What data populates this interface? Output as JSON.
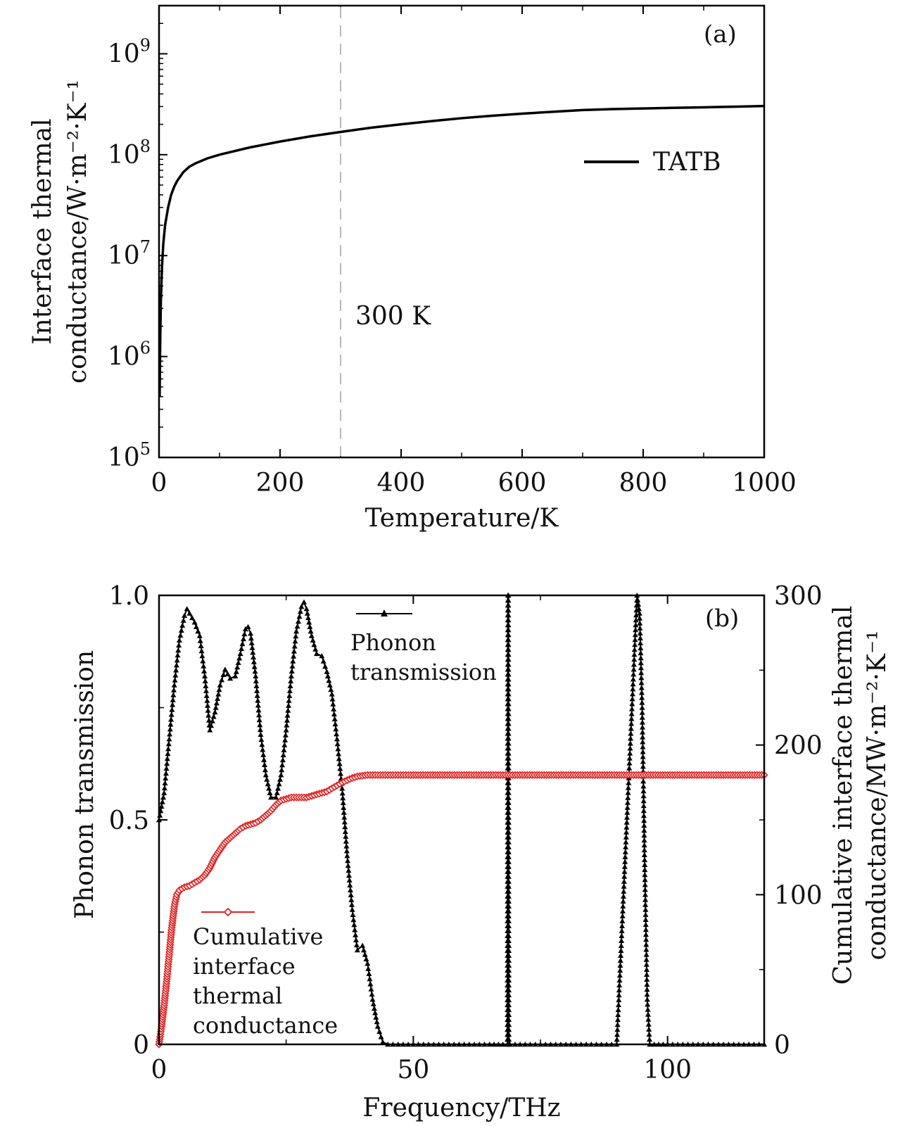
{
  "chart_data": [
    {
      "panel_label": "(a)",
      "type": "line",
      "title": "",
      "xlabel": "Temperature/K",
      "ylabel_line1": "Interface thermal",
      "ylabel_line2": "conductance/W·m⁻²·K⁻¹",
      "yscale": "log",
      "xlim": [
        0,
        1000
      ],
      "ylim": [
        100000,
        3000000000
      ],
      "x_ticks": [
        0,
        200,
        400,
        600,
        800,
        1000
      ],
      "x_tick_labels": [
        "0",
        "200",
        "400",
        "600",
        "800",
        "1000"
      ],
      "y_ticks": [
        100000,
        1000000,
        10000000,
        100000000,
        1000000000
      ],
      "y_tick_labels": [
        {
          "base": "10",
          "exp": "5"
        },
        {
          "base": "10",
          "exp": "6"
        },
        {
          "base": "10",
          "exp": "7"
        },
        {
          "base": "10",
          "exp": "8"
        },
        {
          "base": "10",
          "exp": "9"
        }
      ],
      "reference_line": {
        "x": 300,
        "label": "300 K",
        "color": "#b8b8b8"
      },
      "legend": [
        {
          "name": "TATB",
          "color": "#000000"
        }
      ],
      "series": [
        {
          "name": "TATB",
          "color": "#000000",
          "x": [
            1,
            2,
            3,
            5,
            7,
            10,
            15,
            20,
            25,
            30,
            40,
            50,
            60,
            80,
            100,
            150,
            200,
            250,
            300,
            350,
            400,
            450,
            500,
            550,
            600,
            650,
            700,
            750,
            800,
            850,
            900,
            950,
            1000
          ],
          "y": [
            400000,
            1500000,
            3500000,
            8000000,
            13000000,
            20000000,
            30000000,
            40000000,
            48000000,
            55000000,
            67000000,
            76000000,
            82000000,
            92000000,
            100000000,
            118000000,
            135000000,
            152000000,
            168000000,
            185000000,
            200000000,
            215000000,
            230000000,
            243000000,
            255000000,
            266000000,
            277000000,
            283000000,
            287000000,
            291000000,
            295000000,
            299000000,
            304000000
          ]
        }
      ]
    },
    {
      "panel_label": "(b)",
      "type": "line",
      "title": "",
      "xlabel": "Frequency/THz",
      "ylabel_left": "Phonon transmission",
      "ylabel_right_line1": "Cumulative interface thermal",
      "ylabel_right_line2": "conductance/MW·m⁻²·K⁻¹",
      "xlim": [
        0,
        119
      ],
      "ylim_left": [
        0,
        1
      ],
      "ylim_right": [
        0,
        300
      ],
      "x_ticks": [
        0,
        50,
        100
      ],
      "x_tick_labels": [
        "0",
        "50",
        "100"
      ],
      "y_ticks_left": [
        0,
        0.5,
        1.0
      ],
      "y_tick_labels_left": [
        "0",
        "0.5",
        "1.0"
      ],
      "y_ticks_right": [
        0,
        100,
        200,
        300
      ],
      "y_tick_labels_right": [
        "0",
        "100",
        "200",
        "300"
      ],
      "legend": [
        {
          "name_lines": [
            "Phonon",
            "transmission"
          ],
          "color": "#000000",
          "marker": "triangle"
        },
        {
          "name_lines": [
            "Cumulative",
            "interface",
            "thermal",
            "conductance"
          ],
          "color": "#e02020",
          "marker": "diamond"
        }
      ],
      "series": [
        {
          "name": "Phonon transmission",
          "axis": "left",
          "color": "#000000",
          "marker": "triangle",
          "x": [
            0,
            1,
            2,
            3,
            4,
            5,
            5.5,
            6,
            7,
            8,
            9,
            10,
            11,
            12,
            13,
            14,
            15,
            16,
            17,
            17.5,
            18,
            19,
            20,
            21,
            22,
            23,
            24,
            25,
            26,
            27,
            28,
            28.5,
            29,
            30,
            31,
            32,
            33,
            34,
            35,
            36,
            37,
            38,
            39,
            40,
            41,
            42,
            43,
            44,
            45,
            50,
            55,
            60,
            65,
            68.5,
            68.6,
            68.7,
            68.8,
            69,
            75,
            80,
            85,
            90,
            94,
            94.5,
            95,
            95.5,
            96,
            96.5,
            100,
            105,
            110,
            115,
            119
          ],
          "y": [
            0.5,
            0.56,
            0.68,
            0.8,
            0.9,
            0.955,
            0.97,
            0.96,
            0.94,
            0.91,
            0.82,
            0.7,
            0.74,
            0.8,
            0.835,
            0.815,
            0.82,
            0.87,
            0.925,
            0.93,
            0.915,
            0.82,
            0.69,
            0.6,
            0.55,
            0.55,
            0.6,
            0.7,
            0.82,
            0.92,
            0.975,
            0.985,
            0.97,
            0.91,
            0.87,
            0.865,
            0.83,
            0.78,
            0.68,
            0.57,
            0.42,
            0.3,
            0.21,
            0.22,
            0.18,
            0.1,
            0.04,
            0.005,
            0.0,
            0.0,
            0.0,
            0.0,
            0.0,
            0.0,
            1.0,
            1.0,
            0.0,
            0.0,
            0.0,
            0.0,
            0.0,
            0.0,
            1.0,
            0.96,
            0.75,
            0.4,
            0.1,
            0.0,
            0.0,
            0.0,
            0.0,
            0.0,
            0.0
          ]
        },
        {
          "name": "Cumulative interface thermal conductance",
          "axis": "right",
          "color": "#e02020",
          "marker": "diamond",
          "x": [
            0,
            0.5,
            1,
            1.5,
            2,
            2.5,
            3,
            3.5,
            4,
            5,
            6,
            7,
            8,
            9,
            10,
            11,
            12,
            13,
            14,
            15,
            16,
            17,
            18,
            19,
            20,
            21,
            22,
            23,
            24,
            25,
            26,
            27,
            28,
            29,
            30,
            31,
            32,
            33,
            34,
            35,
            36,
            37,
            38,
            39,
            40,
            41,
            42,
            43,
            44,
            45,
            50,
            60,
            70,
            80,
            90,
            100,
            110,
            119
          ],
          "y": [
            0,
            12,
            26,
            42,
            60,
            78,
            92,
            100,
            103,
            105,
            106,
            108,
            110,
            113,
            118,
            125,
            130,
            135,
            138,
            141,
            144,
            146,
            147,
            148,
            150,
            153,
            156,
            160,
            163,
            164,
            165,
            165,
            165,
            165,
            166,
            167,
            168,
            169,
            171,
            173,
            175,
            176.5,
            178,
            179,
            179.5,
            180,
            180,
            180,
            180,
            180,
            180,
            180,
            180,
            180,
            180,
            180,
            180,
            180
          ]
        }
      ]
    }
  ]
}
